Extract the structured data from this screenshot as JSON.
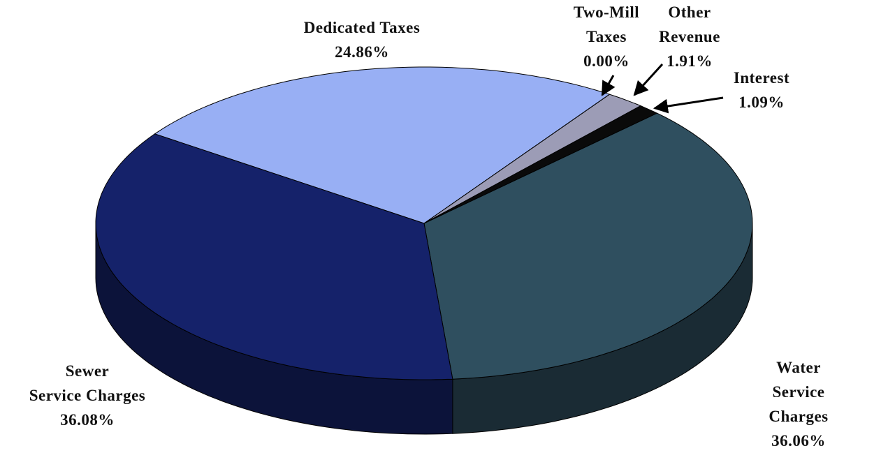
{
  "chart_data": {
    "type": "pie",
    "categories": [
      "Dedicated Taxes",
      "Two-Mill\nTaxes",
      "Other\nRevenue",
      "Interest",
      "Water\nService Charges",
      "Sewer\nService Charges"
    ],
    "values": [
      24.86,
      0.0,
      1.91,
      1.09,
      36.06,
      36.08
    ],
    "value_labels": [
      "24.86%",
      "0.00%",
      "1.91%",
      "1.09%",
      "36.06%",
      "36.08%"
    ],
    "colors": [
      "#98aff4",
      "#9c9cb6",
      "#9c9cb6",
      "#0a0a0a",
      "#2f4f5f",
      "#15226a"
    ]
  }
}
